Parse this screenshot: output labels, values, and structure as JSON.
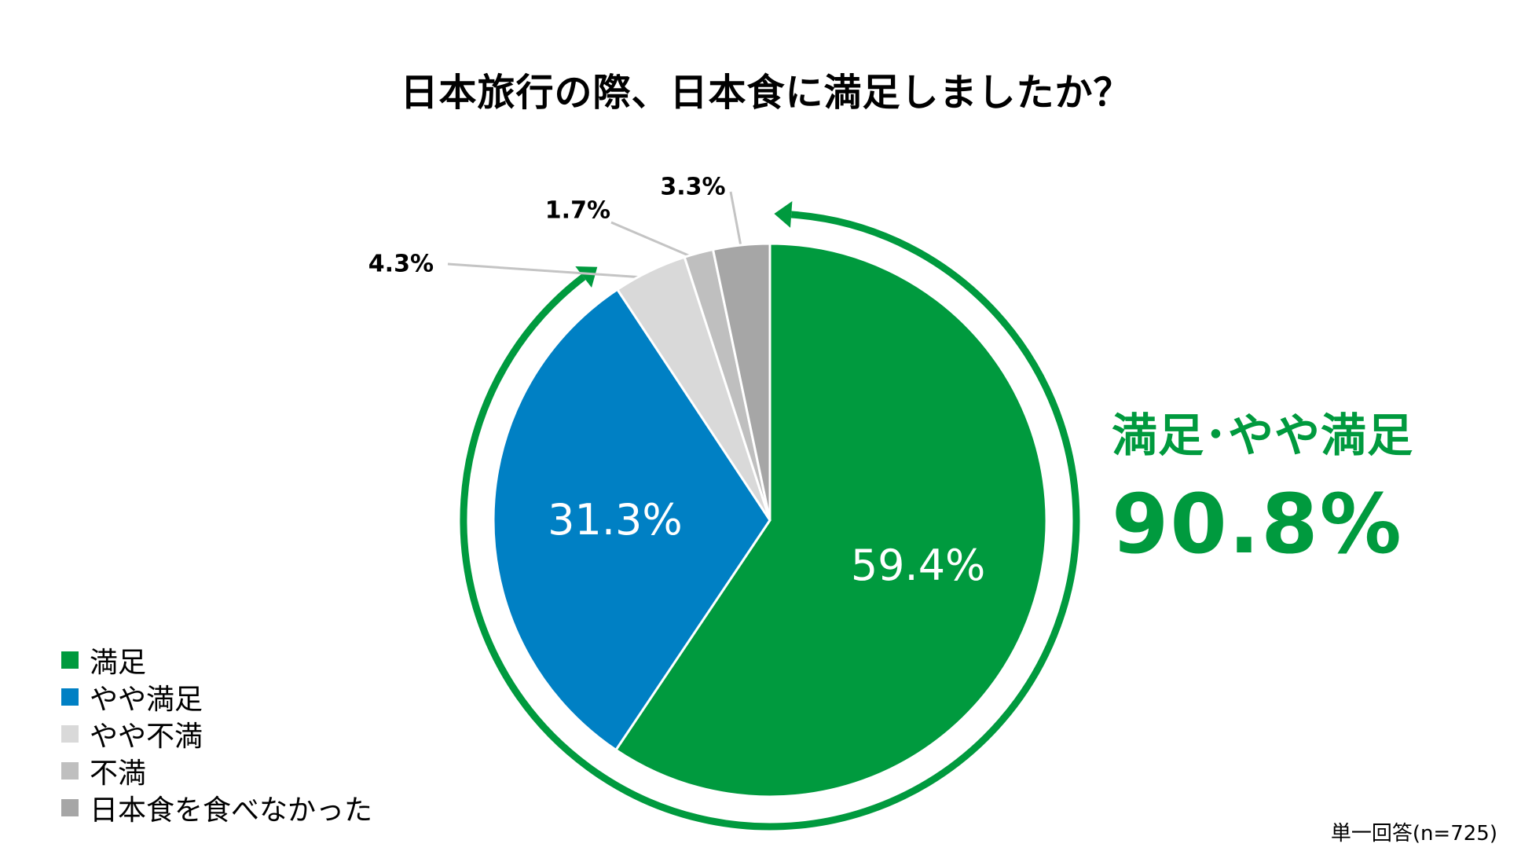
{
  "title": "日本旅行の際、日本食に満足しましたか？",
  "colors": {
    "accent_green": "#009a3e",
    "leader_line": "#c4c4c4"
  },
  "chart_data": {
    "type": "pie",
    "title": "日本旅行の際、日本食に満足しましたか？",
    "slices": [
      {
        "label": "満足",
        "value": 59.4,
        "value_label": "59.4%",
        "color": "#009a3e",
        "label_position": "inside"
      },
      {
        "label": "やや満足",
        "value": 31.3,
        "value_label": "31.3%",
        "color": "#0080c4",
        "label_position": "inside"
      },
      {
        "label": "やや不満",
        "value": 4.3,
        "value_label": "4.3%",
        "color": "#d9d9d9",
        "label_position": "outside"
      },
      {
        "label": "不満",
        "value": 1.7,
        "value_label": "1.7%",
        "color": "#bfbfbf",
        "label_position": "outside"
      },
      {
        "label": "日本食を食べなかった",
        "value": 3.3,
        "value_label": "3.3%",
        "color": "#a6a6a6",
        "label_position": "outside"
      }
    ],
    "start": "12 o'clock",
    "direction": "clockwise",
    "legend_position": "bottom-left",
    "highlight": {
      "label": "満足･やや満足",
      "value": "90.8%",
      "covers": [
        "満足",
        "やや満足"
      ]
    },
    "note": "単一回答(n=725)"
  }
}
